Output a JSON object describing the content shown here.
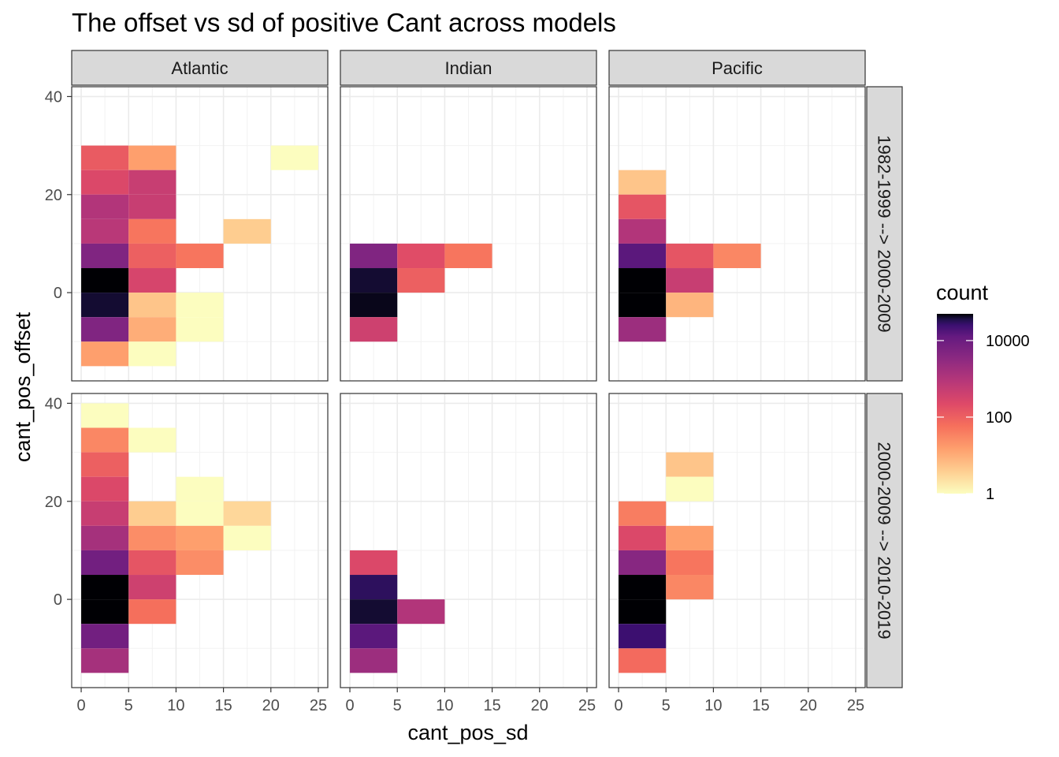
{
  "chart_data": {
    "type": "heatmap",
    "title": "The offset vs sd of positive Cant across models",
    "xlabel": "cant_pos_sd",
    "ylabel": "cant_pos_offset",
    "xlim": [
      -1,
      26
    ],
    "ylim": [
      -18,
      42
    ],
    "x_ticks": [
      0,
      5,
      10,
      15,
      20,
      25
    ],
    "y_ticks": [
      0,
      20,
      40
    ],
    "bin_width_x": 5,
    "bin_height_y": 5,
    "columns": [
      "Atlantic",
      "Indian",
      "Pacific"
    ],
    "rows": [
      "1982-1999 --> 2000-2009",
      "2000-2009 --> 2010-2019"
    ],
    "color_scale": {
      "name": "magma (reversed)",
      "transform": "log10",
      "legend_title": "count",
      "breaks": [
        1,
        100,
        10000
      ],
      "break_labels": [
        "1",
        "100",
        "10000"
      ],
      "max": 50000
    },
    "panels": [
      {
        "column": "Atlantic",
        "row": "1982-1999 --> 2000-2009",
        "cells": [
          {
            "x": [
              0,
              5
            ],
            "y": [
              25,
              30
            ],
            "count": 120
          },
          {
            "x": [
              0,
              5
            ],
            "y": [
              20,
              25
            ],
            "count": 250
          },
          {
            "x": [
              0,
              5
            ],
            "y": [
              15,
              20
            ],
            "count": 1000
          },
          {
            "x": [
              0,
              5
            ],
            "y": [
              10,
              15
            ],
            "count": 800
          },
          {
            "x": [
              0,
              5
            ],
            "y": [
              5,
              10
            ],
            "count": 5000
          },
          {
            "x": [
              0,
              5
            ],
            "y": [
              0,
              5
            ],
            "count": 50000
          },
          {
            "x": [
              0,
              5
            ],
            "y": [
              -5,
              0
            ],
            "count": 40000
          },
          {
            "x": [
              0,
              5
            ],
            "y": [
              -10,
              -5
            ],
            "count": 5000
          },
          {
            "x": [
              0,
              5
            ],
            "y": [
              -15,
              -10
            ],
            "count": 15
          },
          {
            "x": [
              5,
              10
            ],
            "y": [
              25,
              30
            ],
            "count": 15
          },
          {
            "x": [
              5,
              10
            ],
            "y": [
              20,
              25
            ],
            "count": 500
          },
          {
            "x": [
              5,
              10
            ],
            "y": [
              15,
              20
            ],
            "count": 500
          },
          {
            "x": [
              5,
              10
            ],
            "y": [
              10,
              15
            ],
            "count": 50
          },
          {
            "x": [
              5,
              10
            ],
            "y": [
              5,
              10
            ],
            "count": 100
          },
          {
            "x": [
              5,
              10
            ],
            "y": [
              0,
              5
            ],
            "count": 300
          },
          {
            "x": [
              5,
              10
            ],
            "y": [
              -5,
              0
            ],
            "count": 5
          },
          {
            "x": [
              5,
              10
            ],
            "y": [
              -10,
              -5
            ],
            "count": 10
          },
          {
            "x": [
              5,
              10
            ],
            "y": [
              -15,
              -10
            ],
            "count": 1
          },
          {
            "x": [
              10,
              15
            ],
            "y": [
              5,
              10
            ],
            "count": 50
          },
          {
            "x": [
              10,
              15
            ],
            "y": [
              -5,
              0
            ],
            "count": 1
          },
          {
            "x": [
              10,
              15
            ],
            "y": [
              -10,
              -5
            ],
            "count": 1
          },
          {
            "x": [
              15,
              20
            ],
            "y": [
              10,
              15
            ],
            "count": 4
          },
          {
            "x": [
              20,
              25
            ],
            "y": [
              25,
              30
            ],
            "count": 1
          }
        ]
      },
      {
        "column": "Indian",
        "row": "1982-1999 --> 2000-2009",
        "cells": [
          {
            "x": [
              0,
              5
            ],
            "y": [
              5,
              10
            ],
            "count": 5000
          },
          {
            "x": [
              0,
              5
            ],
            "y": [
              0,
              5
            ],
            "count": 40000
          },
          {
            "x": [
              0,
              5
            ],
            "y": [
              -5,
              0
            ],
            "count": 45000
          },
          {
            "x": [
              0,
              5
            ],
            "y": [
              -10,
              -5
            ],
            "count": 400
          },
          {
            "x": [
              5,
              10
            ],
            "y": [
              5,
              10
            ],
            "count": 200
          },
          {
            "x": [
              5,
              10
            ],
            "y": [
              0,
              5
            ],
            "count": 100
          },
          {
            "x": [
              10,
              15
            ],
            "y": [
              5,
              10
            ],
            "count": 50
          }
        ]
      },
      {
        "column": "Pacific",
        "row": "1982-1999 --> 2000-2009",
        "cells": [
          {
            "x": [
              0,
              5
            ],
            "y": [
              20,
              25
            ],
            "count": 5
          },
          {
            "x": [
              0,
              5
            ],
            "y": [
              15,
              20
            ],
            "count": 150
          },
          {
            "x": [
              0,
              5
            ],
            "y": [
              10,
              15
            ],
            "count": 1000
          },
          {
            "x": [
              0,
              5
            ],
            "y": [
              5,
              10
            ],
            "count": 15000
          },
          {
            "x": [
              0,
              5
            ],
            "y": [
              0,
              5
            ],
            "count": 60000
          },
          {
            "x": [
              0,
              5
            ],
            "y": [
              -5,
              0
            ],
            "count": 55000
          },
          {
            "x": [
              0,
              5
            ],
            "y": [
              -10,
              -5
            ],
            "count": 2000
          },
          {
            "x": [
              5,
              10
            ],
            "y": [
              5,
              10
            ],
            "count": 150
          },
          {
            "x": [
              5,
              10
            ],
            "y": [
              0,
              5
            ],
            "count": 500
          },
          {
            "x": [
              5,
              10
            ],
            "y": [
              -5,
              0
            ],
            "count": 8
          },
          {
            "x": [
              10,
              15
            ],
            "y": [
              5,
              10
            ],
            "count": 30
          }
        ]
      },
      {
        "column": "Atlantic",
        "row": "2000-2009 --> 2010-2019",
        "cells": [
          {
            "x": [
              0,
              5
            ],
            "y": [
              35,
              40
            ],
            "count": 1
          },
          {
            "x": [
              0,
              5
            ],
            "y": [
              30,
              35
            ],
            "count": 30
          },
          {
            "x": [
              0,
              5
            ],
            "y": [
              25,
              30
            ],
            "count": 100
          },
          {
            "x": [
              0,
              5
            ],
            "y": [
              20,
              25
            ],
            "count": 250
          },
          {
            "x": [
              0,
              5
            ],
            "y": [
              15,
              20
            ],
            "count": 500
          },
          {
            "x": [
              0,
              5
            ],
            "y": [
              10,
              15
            ],
            "count": 1500
          },
          {
            "x": [
              0,
              5
            ],
            "y": [
              5,
              10
            ],
            "count": 8000
          },
          {
            "x": [
              0,
              5
            ],
            "y": [
              0,
              5
            ],
            "count": 50000
          },
          {
            "x": [
              0,
              5
            ],
            "y": [
              -5,
              0
            ],
            "count": 50000
          },
          {
            "x": [
              0,
              5
            ],
            "y": [
              -10,
              -5
            ],
            "count": 8000
          },
          {
            "x": [
              0,
              5
            ],
            "y": [
              -15,
              -10
            ],
            "count": 1500
          },
          {
            "x": [
              5,
              10
            ],
            "y": [
              30,
              35
            ],
            "count": 1
          },
          {
            "x": [
              5,
              10
            ],
            "y": [
              15,
              20
            ],
            "count": 4
          },
          {
            "x": [
              5,
              10
            ],
            "y": [
              10,
              15
            ],
            "count": 25
          },
          {
            "x": [
              5,
              10
            ],
            "y": [
              5,
              10
            ],
            "count": 150
          },
          {
            "x": [
              5,
              10
            ],
            "y": [
              0,
              5
            ],
            "count": 400
          },
          {
            "x": [
              5,
              10
            ],
            "y": [
              -5,
              0
            ],
            "count": 60
          },
          {
            "x": [
              10,
              15
            ],
            "y": [
              20,
              25
            ],
            "count": 1
          },
          {
            "x": [
              10,
              15
            ],
            "y": [
              15,
              20
            ],
            "count": 1
          },
          {
            "x": [
              10,
              15
            ],
            "y": [
              10,
              15
            ],
            "count": 15
          },
          {
            "x": [
              10,
              15
            ],
            "y": [
              5,
              10
            ],
            "count": 25
          },
          {
            "x": [
              15,
              20
            ],
            "y": [
              15,
              20
            ],
            "count": 3
          },
          {
            "x": [
              15,
              20
            ],
            "y": [
              10,
              15
            ],
            "count": 1
          }
        ]
      },
      {
        "column": "Indian",
        "row": "2000-2009 --> 2010-2019",
        "cells": [
          {
            "x": [
              0,
              5
            ],
            "y": [
              5,
              10
            ],
            "count": 250
          },
          {
            "x": [
              0,
              5
            ],
            "y": [
              0,
              5
            ],
            "count": 30000
          },
          {
            "x": [
              0,
              5
            ],
            "y": [
              -5,
              0
            ],
            "count": 40000
          },
          {
            "x": [
              0,
              5
            ],
            "y": [
              -10,
              -5
            ],
            "count": 15000
          },
          {
            "x": [
              0,
              5
            ],
            "y": [
              -15,
              -10
            ],
            "count": 2000
          },
          {
            "x": [
              5,
              10
            ],
            "y": [
              -5,
              0
            ],
            "count": 1000
          }
        ]
      },
      {
        "column": "Pacific",
        "row": "2000-2009 --> 2010-2019",
        "cells": [
          {
            "x": [
              0,
              5
            ],
            "y": [
              15,
              20
            ],
            "count": 40
          },
          {
            "x": [
              0,
              5
            ],
            "y": [
              10,
              15
            ],
            "count": 250
          },
          {
            "x": [
              0,
              5
            ],
            "y": [
              5,
              10
            ],
            "count": 4000
          },
          {
            "x": [
              0,
              5
            ],
            "y": [
              0,
              5
            ],
            "count": 60000
          },
          {
            "x": [
              0,
              5
            ],
            "y": [
              -5,
              0
            ],
            "count": 70000
          },
          {
            "x": [
              0,
              5
            ],
            "y": [
              -10,
              -5
            ],
            "count": 25000
          },
          {
            "x": [
              0,
              5
            ],
            "y": [
              -15,
              -10
            ],
            "count": 70
          },
          {
            "x": [
              5,
              10
            ],
            "y": [
              25,
              30
            ],
            "count": 5
          },
          {
            "x": [
              5,
              10
            ],
            "y": [
              20,
              25
            ],
            "count": 1
          },
          {
            "x": [
              5,
              10
            ],
            "y": [
              10,
              15
            ],
            "count": 15
          },
          {
            "x": [
              5,
              10
            ],
            "y": [
              5,
              10
            ],
            "count": 50
          },
          {
            "x": [
              5,
              10
            ],
            "y": [
              0,
              5
            ],
            "count": 30
          }
        ]
      }
    ]
  }
}
